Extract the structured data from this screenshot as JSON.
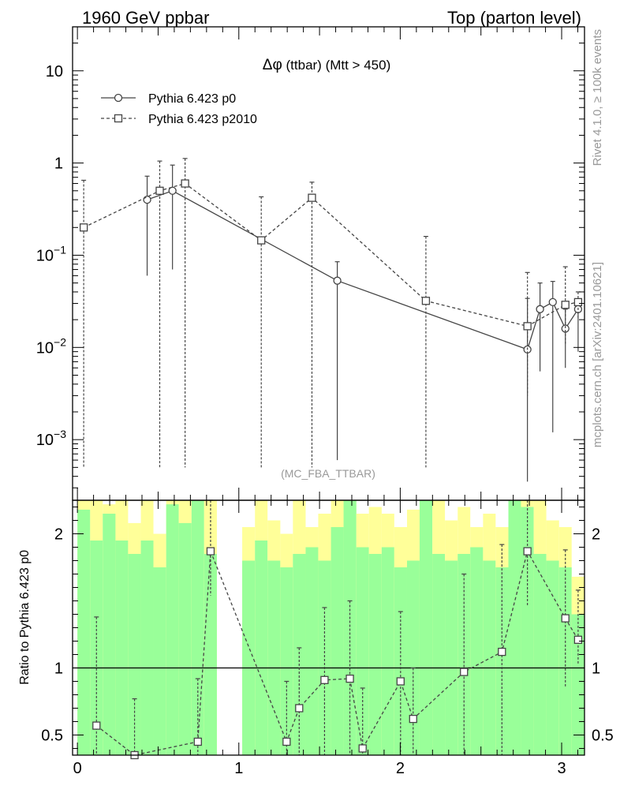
{
  "header": {
    "left": "1960 GeV ppbar",
    "right": "Top (parton level)"
  },
  "side_labels": {
    "rivet": "Rivet 4.1.0, ≥ 100k events",
    "mcplots": "mcplots.cern.ch [arXiv:2401.10621]"
  },
  "analysis_tag": "(MC_FBA_TTBAR)",
  "colors": {
    "axis": "#000000",
    "series": "#444444",
    "band_inner": "#99ff99",
    "band_outer": "#ffff99",
    "watermark": "#999999"
  },
  "chart_data": [
    {
      "type": "line",
      "panel": "main",
      "title": "Δφ (ttbar) (Mtt > 450)",
      "title_symbol": "Δφ",
      "title_rest": " (ttbar) (Mtt > 450)",
      "xlabel": "",
      "ylabel": "",
      "yscale": "log",
      "xlim": [
        -0.03,
        3.1416
      ],
      "ylim": [
        0.00022,
        30
      ],
      "grid": false,
      "legend_position": "top-left",
      "y_ticks": [
        {
          "value": 10,
          "label": "10"
        },
        {
          "value": 1,
          "label": "1"
        },
        {
          "value": 0.1,
          "label": "10",
          "exp": "−1"
        },
        {
          "value": 0.01,
          "label": "10",
          "exp": "−2"
        },
        {
          "value": 0.001,
          "label": "10",
          "exp": "−3"
        }
      ],
      "series": [
        {
          "name": "Pythia 6.423 p0",
          "marker": "circle",
          "style": "solid",
          "x": [
            0.432,
            0.589,
            1.61,
            2.788,
            2.866,
            2.945,
            3.023,
            3.102
          ],
          "y": [
            0.4,
            0.5,
            0.053,
            0.0095,
            0.026,
            0.031,
            0.016,
            0.026
          ],
          "yerr_hi": [
            0.72,
            0.95,
            0.085,
            0.034,
            0.05,
            0.052,
            0.026,
            0.032
          ],
          "yerr_lo": [
            0.06,
            0.07,
            0.0006,
            0.00035,
            0.0055,
            0.0012,
            0.006,
            0.009
          ]
        },
        {
          "name": "Pythia 6.423 p2010",
          "marker": "square",
          "style": "dashed",
          "x": [
            0.039,
            0.51,
            0.667,
            1.139,
            1.453,
            2.159,
            2.788,
            3.023,
            3.102
          ],
          "y": [
            0.2,
            0.5,
            0.6,
            0.145,
            0.42,
            0.032,
            0.017,
            0.029,
            0.031
          ],
          "yerr_hi": [
            0.65,
            1.05,
            1.12,
            0.43,
            0.62,
            0.16,
            0.065,
            0.075,
            0.04
          ],
          "yerr_lo": [
            0.0005,
            0.0005,
            0.0005,
            0.0005,
            0.0005,
            0.0005,
            0.003,
            0.011,
            0.021
          ]
        }
      ]
    },
    {
      "type": "line",
      "panel": "ratio",
      "xlabel": "",
      "ylabel": "Ratio to Pythia 6.423 p0",
      "xlim": [
        -0.03,
        3.1416
      ],
      "ylim": [
        0.35,
        2.25
      ],
      "reference": 1,
      "x_ticks": [
        0,
        1,
        2,
        3
      ],
      "y_ticks": [
        0.5,
        1,
        2
      ],
      "band_bins": [
        {
          "x": [
            0.0,
            0.079
          ],
          "inner": 2.18,
          "outer": 2.25
        },
        {
          "x": [
            0.079,
            0.157
          ],
          "inner": 1.95,
          "outer": 2.25
        },
        {
          "x": [
            0.157,
            0.236
          ],
          "inner": 2.15,
          "outer": 2.22
        },
        {
          "x": [
            0.236,
            0.314
          ],
          "inner": 1.95,
          "outer": 2.25
        },
        {
          "x": [
            0.314,
            0.393
          ],
          "inner": 1.85,
          "outer": 2.08
        },
        {
          "x": [
            0.393,
            0.471
          ],
          "inner": 1.95,
          "outer": 2.25
        },
        {
          "x": [
            0.471,
            0.55
          ],
          "inner": 1.75,
          "outer": 2.0
        },
        {
          "x": [
            0.55,
            0.628
          ],
          "inner": 2.22,
          "outer": 2.25
        },
        {
          "x": [
            0.628,
            0.707
          ],
          "inner": 2.08,
          "outer": 2.25
        },
        {
          "x": [
            0.707,
            0.785
          ],
          "inner": 2.25,
          "outer": 2.25
        },
        {
          "x": [
            0.785,
            0.864
          ],
          "inner": 1.85,
          "outer": 2.25
        },
        {
          "x": [
            1.021,
            1.1
          ],
          "inner": 1.8,
          "outer": 2.05
        },
        {
          "x": [
            1.1,
            1.178
          ],
          "inner": 1.95,
          "outer": 2.25
        },
        {
          "x": [
            1.178,
            1.257
          ],
          "inner": 1.8,
          "outer": 2.1
        },
        {
          "x": [
            1.257,
            1.335
          ],
          "inner": 1.75,
          "outer": 2.0
        },
        {
          "x": [
            1.335,
            1.414
          ],
          "inner": 1.85,
          "outer": 2.25
        },
        {
          "x": [
            1.414,
            1.492
          ],
          "inner": 1.9,
          "outer": 2.05
        },
        {
          "x": [
            1.492,
            1.571
          ],
          "inner": 1.8,
          "outer": 2.15
        },
        {
          "x": [
            1.571,
            1.649
          ],
          "inner": 2.05,
          "outer": 2.25
        },
        {
          "x": [
            1.649,
            1.728
          ],
          "inner": 2.25,
          "outer": 2.25
        },
        {
          "x": [
            1.728,
            1.806
          ],
          "inner": 1.9,
          "outer": 2.15
        },
        {
          "x": [
            1.806,
            1.885
          ],
          "inner": 1.85,
          "outer": 2.2
        },
        {
          "x": [
            1.885,
            1.963
          ],
          "inner": 1.9,
          "outer": 2.15
        },
        {
          "x": [
            1.963,
            2.042
          ],
          "inner": 1.75,
          "outer": 2.05
        },
        {
          "x": [
            2.042,
            2.12
          ],
          "inner": 1.8,
          "outer": 2.18
        },
        {
          "x": [
            2.12,
            2.199
          ],
          "inner": 2.25,
          "outer": 2.25
        },
        {
          "x": [
            2.199,
            2.277
          ],
          "inner": 1.85,
          "outer": 2.25
        },
        {
          "x": [
            2.277,
            2.356
          ],
          "inner": 1.8,
          "outer": 2.1
        },
        {
          "x": [
            2.356,
            2.434
          ],
          "inner": 1.85,
          "outer": 2.2
        },
        {
          "x": [
            2.434,
            2.513
          ],
          "inner": 1.9,
          "outer": 2.05
        },
        {
          "x": [
            2.513,
            2.591
          ],
          "inner": 1.8,
          "outer": 2.15
        },
        {
          "x": [
            2.591,
            2.67
          ],
          "inner": 1.75,
          "outer": 2.05
        },
        {
          "x": [
            2.67,
            2.748
          ],
          "inner": 2.25,
          "outer": 2.25
        },
        {
          "x": [
            2.748,
            2.827
          ],
          "inner": 2.2,
          "outer": 2.25
        },
        {
          "x": [
            2.827,
            2.905
          ],
          "inner": 1.85,
          "outer": 2.25
        },
        {
          "x": [
            2.905,
            2.984
          ],
          "inner": 1.8,
          "outer": 2.1
        },
        {
          "x": [
            2.984,
            3.062
          ],
          "inner": 1.75,
          "outer": 2.05
        },
        {
          "x": [
            3.062,
            3.142
          ],
          "inner": 1.4,
          "outer": 1.68
        }
      ],
      "series": [
        {
          "name": "Pythia 6.423 p2010",
          "marker": "square",
          "style": "dashed",
          "x": [
            0.118,
            0.354,
            0.746,
            0.825,
            1.296,
            1.374,
            1.531,
            1.688,
            1.767,
            2.002,
            2.08,
            2.395,
            2.63,
            2.788,
            3.023,
            3.102
          ],
          "y": [
            0.57,
            0.34,
            0.45,
            1.87,
            0.45,
            0.7,
            0.91,
            0.92,
            0.4,
            0.9,
            0.62,
            0.97,
            1.12,
            1.87,
            1.37,
            1.21
          ],
          "yerr_hi": [
            1.38,
            0.77,
            0.92,
            2.25,
            0.9,
            1.15,
            1.45,
            1.5,
            0.85,
            1.42,
            1.0,
            1.7,
            1.92,
            2.25,
            1.88,
            1.58
          ],
          "yerr_lo": [
            0.35,
            0.35,
            0.35,
            1.54,
            0.35,
            0.35,
            0.35,
            0.35,
            0.35,
            0.35,
            0.35,
            0.35,
            0.35,
            1.46,
            0.86,
            1.03
          ]
        }
      ]
    }
  ]
}
